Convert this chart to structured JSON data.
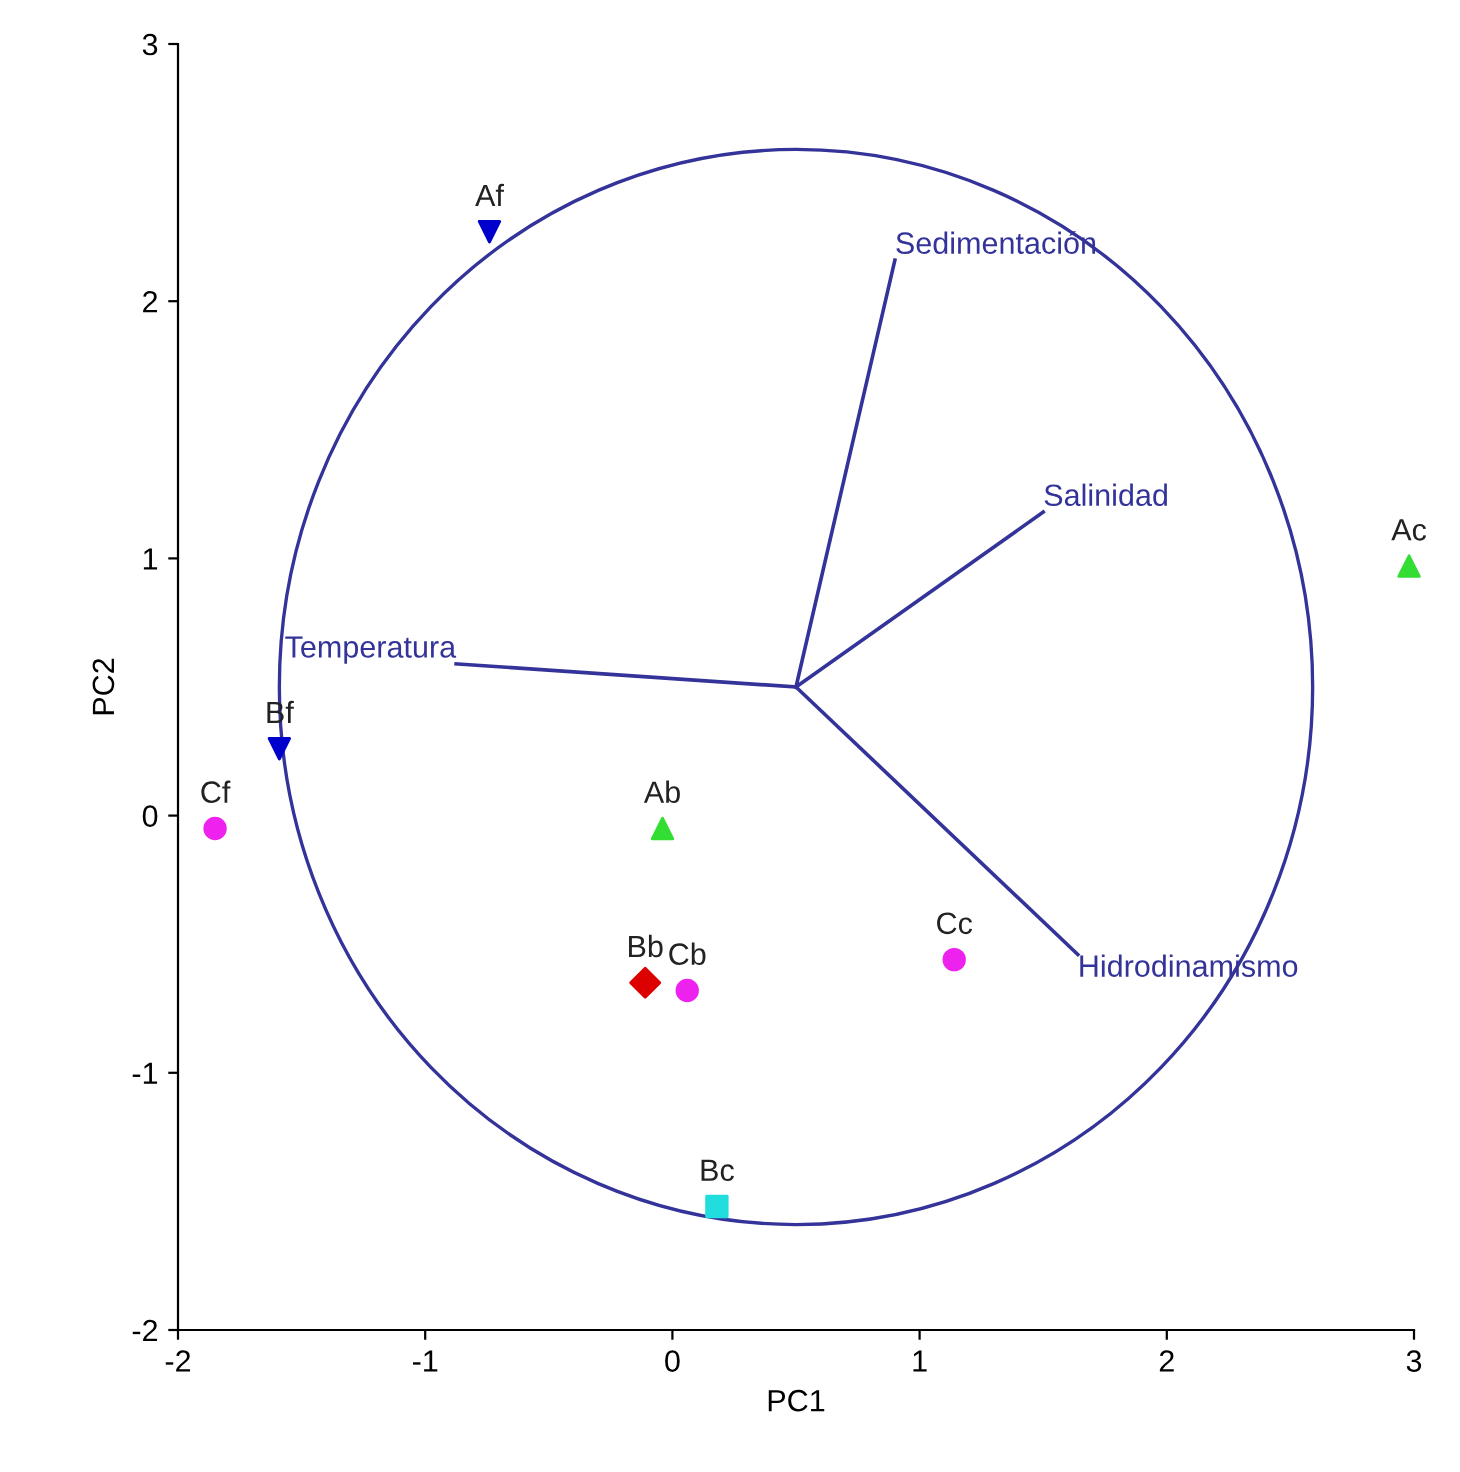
{
  "chart_data": {
    "type": "scatter",
    "xlabel": "PC1",
    "ylabel": "PC2",
    "xlim": [
      -2,
      3
    ],
    "ylim": [
      -2,
      3
    ],
    "xticks": [
      -2,
      -1,
      0,
      1,
      2,
      3
    ],
    "yticks": [
      -2,
      -1,
      0,
      1,
      2,
      3
    ],
    "grid": false,
    "legend": false,
    "series": [
      {
        "name": "Af",
        "color": "#0000cc",
        "marker": "triangle_down",
        "x": [
          -0.74
        ],
        "values": [
          2.27
        ]
      },
      {
        "name": "Bf",
        "color": "#0000cc",
        "marker": "triangle_down",
        "x": [
          -1.59
        ],
        "values": [
          0.26
        ]
      },
      {
        "name": "Ac",
        "color": "#33dd33",
        "marker": "triangle",
        "x": [
          2.98
        ],
        "values": [
          0.97
        ]
      },
      {
        "name": "Ab",
        "color": "#33dd33",
        "marker": "triangle",
        "x": [
          -0.04
        ],
        "values": [
          -0.05
        ]
      },
      {
        "name": "Cf",
        "color": "#ee22ee",
        "marker": "circle",
        "x": [
          -1.85
        ],
        "values": [
          -0.05
        ]
      },
      {
        "name": "Cb",
        "color": "#ee22ee",
        "marker": "circle",
        "x": [
          0.06
        ],
        "values": [
          -0.68
        ]
      },
      {
        "name": "Cc",
        "color": "#ee22ee",
        "marker": "circle",
        "x": [
          1.14
        ],
        "values": [
          -0.56
        ]
      },
      {
        "name": "Bb",
        "color": "#dd0000",
        "marker": "diamond",
        "x": [
          -0.11
        ],
        "values": [
          -0.65
        ]
      },
      {
        "name": "Bc",
        "color": "#22dddd",
        "marker": "square",
        "x": [
          0.18
        ],
        "values": [
          -1.52
        ]
      },
      {
        "name": "Sedimentación",
        "type": "line",
        "color": "#333399",
        "x": [
          0.5,
          0.9
        ],
        "values": [
          0.5,
          2.16
        ]
      },
      {
        "name": "Salinidad",
        "type": "line",
        "color": "#333399",
        "x": [
          0.5,
          1.5
        ],
        "values": [
          0.5,
          1.18
        ]
      },
      {
        "name": "Temperatura",
        "type": "line",
        "color": "#333399",
        "x": [
          0.5,
          -0.875
        ],
        "values": [
          0.5,
          0.59
        ]
      },
      {
        "name": "Hidrodinamismo",
        "type": "line",
        "color": "#333399",
        "x": [
          0.5,
          1.64
        ],
        "values": [
          0.5,
          -0.54
        ]
      }
    ]
  }
}
